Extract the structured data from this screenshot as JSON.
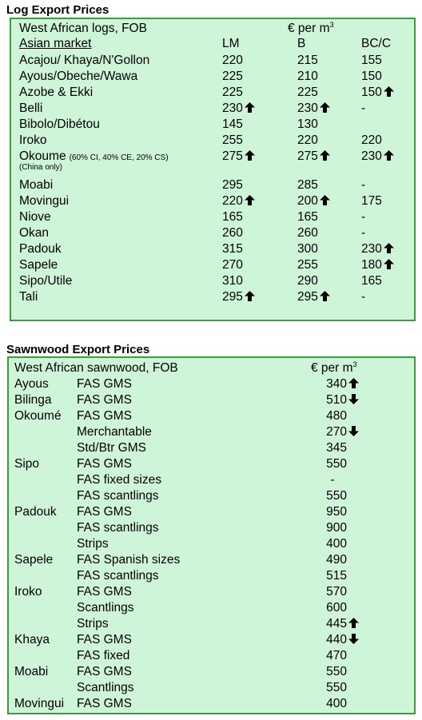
{
  "log": {
    "section_title": "Log Export Prices",
    "header_label": "West African logs, FOB",
    "unit_prefix": "€ per m",
    "unit_sup": "3",
    "market_label": "Asian market",
    "col_labels": [
      "LM",
      "B",
      "BC/C"
    ],
    "rows": [
      {
        "name": "Acajou/ Khaya/N'Gollon",
        "note": "",
        "note2": "",
        "lm": "220",
        "b": "215",
        "bc": "155",
        "lm_arrow": "",
        "b_arrow": "",
        "bc_arrow": ""
      },
      {
        "name": "Ayous/Obeche/Wawa",
        "note": "",
        "note2": "",
        "lm": "225",
        "b": "210",
        "bc": "150",
        "lm_arrow": "",
        "b_arrow": "",
        "bc_arrow": ""
      },
      {
        "name": "Azobe & Ekki",
        "note": "",
        "note2": "",
        "lm": "225",
        "b": "225",
        "bc": "150",
        "lm_arrow": "",
        "b_arrow": "",
        "bc_arrow": "up"
      },
      {
        "name": "Belli",
        "note": "",
        "note2": "",
        "lm": "230",
        "b": "230",
        "bc": "-",
        "lm_arrow": "up",
        "b_arrow": "up",
        "bc_arrow": ""
      },
      {
        "name": "Bibolo/Dibétou",
        "note": "",
        "note2": "",
        "lm": "145",
        "b": "130",
        "bc": "",
        "lm_arrow": "",
        "b_arrow": "",
        "bc_arrow": ""
      },
      {
        "name": "Iroko",
        "note": "",
        "note2": "",
        "lm": "255",
        "b": "220",
        "bc": "220",
        "lm_arrow": "",
        "b_arrow": "",
        "bc_arrow": ""
      },
      {
        "name": "Okoume",
        "note": "(60% CI, 40% CE, 20% CS)",
        "note2": "(China only)",
        "lm": "275",
        "b": "275",
        "bc": "230",
        "lm_arrow": "up",
        "b_arrow": "up",
        "bc_arrow": "up"
      },
      {
        "name": "Moabi",
        "note": "",
        "note2": "",
        "lm": "295",
        "b": "285",
        "bc": "-",
        "lm_arrow": "",
        "b_arrow": "",
        "bc_arrow": ""
      },
      {
        "name": "Movingui",
        "note": "",
        "note2": "",
        "lm": "220",
        "b": "200",
        "bc": "175",
        "lm_arrow": "up",
        "b_arrow": "up",
        "bc_arrow": ""
      },
      {
        "name": "Niove",
        "note": "",
        "note2": "",
        "lm": "165",
        "b": "165",
        "bc": "-",
        "lm_arrow": "",
        "b_arrow": "",
        "bc_arrow": ""
      },
      {
        "name": "Okan",
        "note": "",
        "note2": "",
        "lm": "260",
        "b": "260",
        "bc": "-",
        "lm_arrow": "",
        "b_arrow": "",
        "bc_arrow": ""
      },
      {
        "name": "Padouk",
        "note": "",
        "note2": "",
        "lm": "315",
        "b": "300",
        "bc": "230",
        "lm_arrow": "",
        "b_arrow": "",
        "bc_arrow": "up"
      },
      {
        "name": "Sapele",
        "note": "",
        "note2": "",
        "lm": "270",
        "b": "255",
        "bc": "180",
        "lm_arrow": "",
        "b_arrow": "",
        "bc_arrow": "up"
      },
      {
        "name": "Sipo/Utile",
        "note": "",
        "note2": "",
        "lm": "310",
        "b": "290",
        "bc": "165",
        "lm_arrow": "",
        "b_arrow": "",
        "bc_arrow": ""
      },
      {
        "name": "Tali",
        "note": "",
        "note2": "",
        "lm": "295",
        "b": "295",
        "bc": "-",
        "lm_arrow": "up",
        "b_arrow": "up",
        "bc_arrow": ""
      }
    ]
  },
  "sawn": {
    "section_title": "Sawnwood Export Prices",
    "header_label": "West African sawnwood, FOB",
    "unit_prefix": "€ per m",
    "unit_sup": "3",
    "rows": [
      {
        "species": "Ayous",
        "grade": "FAS GMS",
        "price": "340",
        "arrow": "up"
      },
      {
        "species": "Bilinga",
        "grade": "FAS GMS",
        "price": "510",
        "arrow": "down"
      },
      {
        "species": "Okoumé",
        "grade": "FAS GMS",
        "price": "480",
        "arrow": ""
      },
      {
        "species": "",
        "grade": "Merchantable",
        "price": "270",
        "arrow": "down"
      },
      {
        "species": "",
        "grade": "Std/Btr GMS",
        "price": "345",
        "arrow": ""
      },
      {
        "species": "Sipo",
        "grade": "FAS GMS",
        "price": "550",
        "arrow": ""
      },
      {
        "species": "",
        "grade": "FAS fixed sizes",
        "price": "-",
        "arrow": ""
      },
      {
        "species": "",
        "grade": "FAS scantlings",
        "price": "550",
        "arrow": ""
      },
      {
        "species": "Padouk",
        "grade": "FAS GMS",
        "price": "950",
        "arrow": ""
      },
      {
        "species": "",
        "grade": "FAS scantlings",
        "price": "900",
        "arrow": ""
      },
      {
        "species": "",
        "grade": "Strips",
        "price": "400",
        "arrow": ""
      },
      {
        "species": "Sapele",
        "grade": "FAS Spanish sizes",
        "price": "490",
        "arrow": ""
      },
      {
        "species": "",
        "grade": "FAS scantlings",
        "price": "515",
        "arrow": ""
      },
      {
        "species": "Iroko",
        "grade": "FAS GMS",
        "price": "570",
        "arrow": ""
      },
      {
        "species": "",
        "grade": "Scantlings",
        "price": "600",
        "arrow": ""
      },
      {
        "species": "",
        "grade": "Strips",
        "price": "445",
        "arrow": "up"
      },
      {
        "species": "Khaya",
        "grade": "FAS GMS",
        "price": "440",
        "arrow": "down"
      },
      {
        "species": "",
        "grade": "FAS fixed",
        "price": "470",
        "arrow": ""
      },
      {
        "species": "Moabi",
        "grade": "FAS GMS",
        "price": "550",
        "arrow": ""
      },
      {
        "species": "",
        "grade": "Scantlings",
        "price": "550",
        "arrow": ""
      },
      {
        "species": "Movingui",
        "grade": "FAS GMS",
        "price": "400",
        "arrow": ""
      }
    ]
  }
}
